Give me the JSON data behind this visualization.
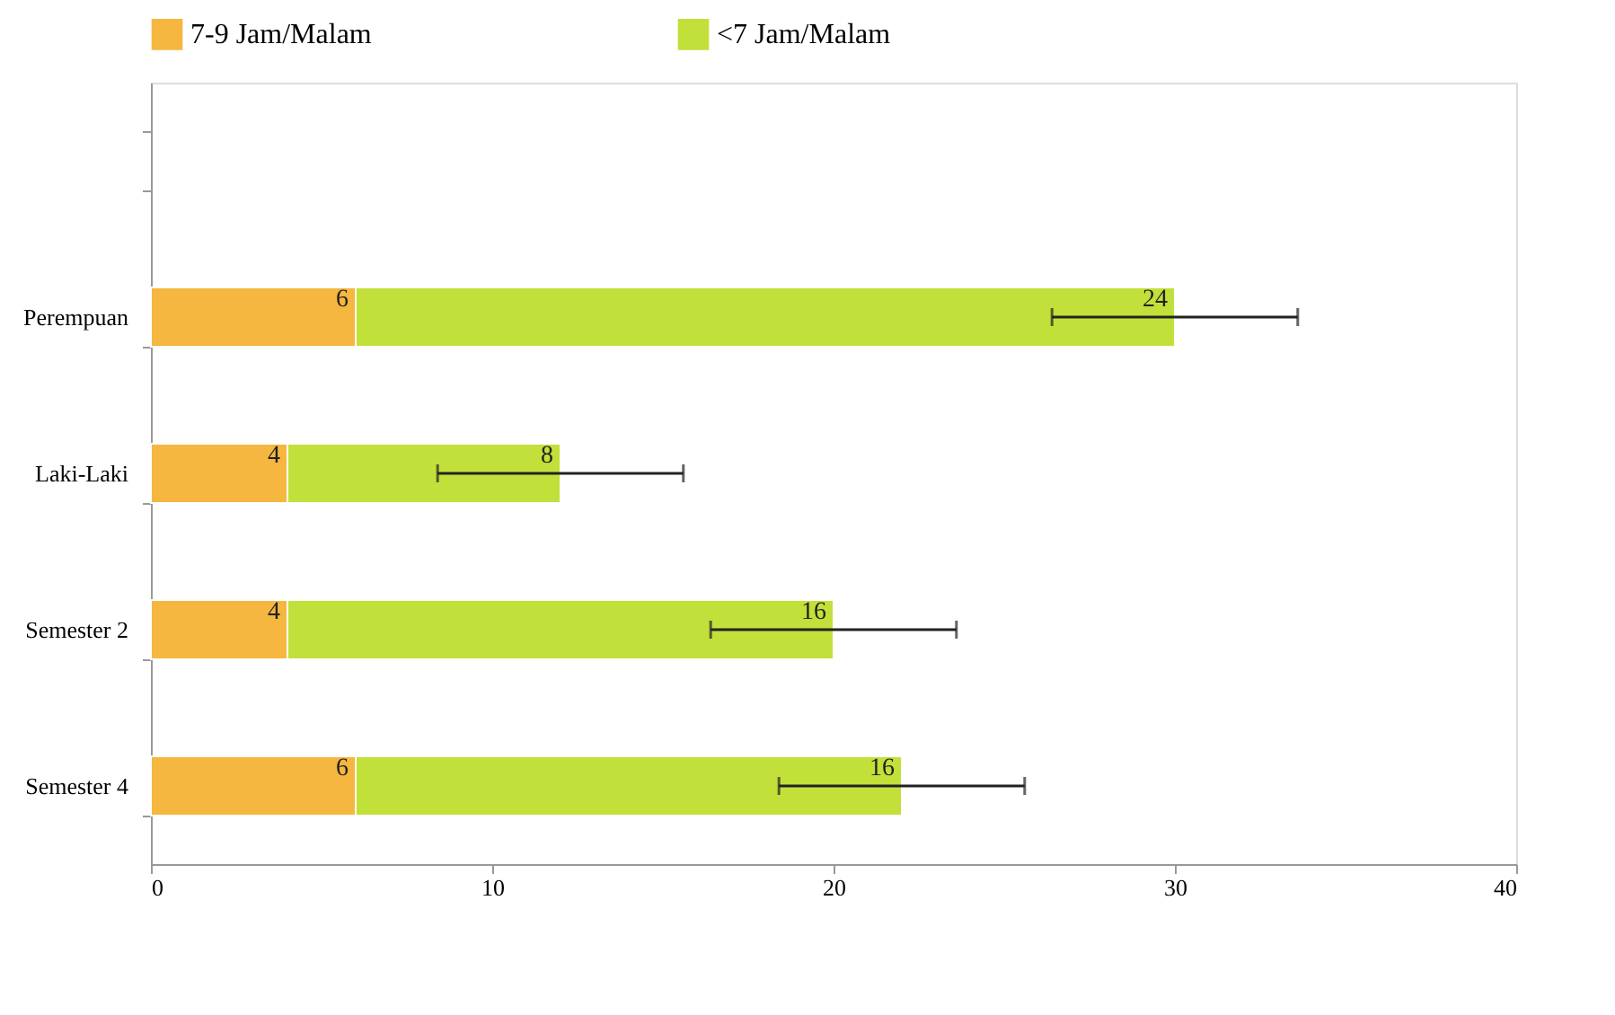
{
  "chart_data": {
    "type": "bar",
    "orientation": "horizontal",
    "stacked": true,
    "categories": [
      null,
      "Perempuan",
      "Laki-Laki",
      "Semester  2",
      "Semester 4"
    ],
    "series": [
      {
        "name": "7-9 Jam/Malam",
        "color": "#f5b73f",
        "values": [
          null,
          6,
          4,
          4,
          6
        ]
      },
      {
        "name": "<7 Jam/Malam",
        "color": "#c2e03a",
        "values": [
          null,
          24,
          8,
          16,
          16
        ],
        "errors": [
          null,
          3.6,
          3.6,
          3.6,
          3.6
        ]
      }
    ],
    "xlim": [
      0,
      40
    ],
    "xticks": [
      0,
      10,
      20,
      30,
      40
    ],
    "data_labels": true,
    "legend": "top",
    "grid": false
  }
}
